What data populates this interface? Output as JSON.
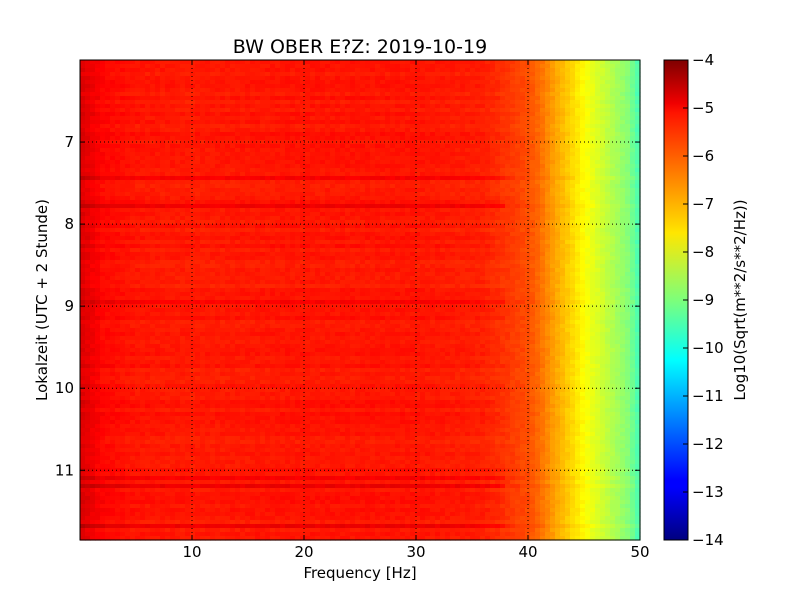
{
  "chart_data": {
    "type": "heatmap",
    "title": "BW OBER E?Z: 2019-10-19",
    "xlabel": "Frequency [Hz]",
    "ylabel": "Lokalzeit (UTC + 2 Stunde)",
    "xlim": [
      0,
      50
    ],
    "ylim": [
      11.85,
      6.0
    ],
    "x_ticks": [
      10,
      20,
      30,
      40,
      50
    ],
    "x_tick_labels": [
      "10",
      "20",
      "30",
      "40",
      "50"
    ],
    "y_ticks": [
      7,
      8,
      9,
      10,
      11
    ],
    "y_tick_labels": [
      "7",
      "8",
      "9",
      "10",
      "11"
    ],
    "grid": true,
    "colormap": "jet",
    "colorbar": {
      "label": "Log10(Sqrt(m**2/s**2/Hz))",
      "range": [
        -14,
        -4
      ],
      "ticks": [
        -4,
        -5,
        -6,
        -7,
        -8,
        -9,
        -10,
        -11,
        -12,
        -13,
        -14
      ],
      "tick_labels": [
        "−4",
        "−5",
        "−6",
        "−7",
        "−8",
        "−9",
        "−10",
        "−11",
        "−12",
        "−13",
        "−14"
      ]
    },
    "spectrum_profile": {
      "frequency_hz": [
        0,
        1,
        2,
        5,
        10,
        20,
        30,
        36,
        38,
        40,
        41,
        42,
        43,
        44,
        45,
        46,
        47,
        48,
        49,
        50
      ],
      "level": [
        -4.9,
        -5.1,
        -5.3,
        -5.45,
        -5.5,
        -5.45,
        -5.45,
        -5.55,
        -5.75,
        -6.0,
        -6.3,
        -6.7,
        -7.05,
        -7.4,
        -7.75,
        -8.05,
        -8.35,
        -8.65,
        -8.95,
        -9.6
      ]
    }
  }
}
